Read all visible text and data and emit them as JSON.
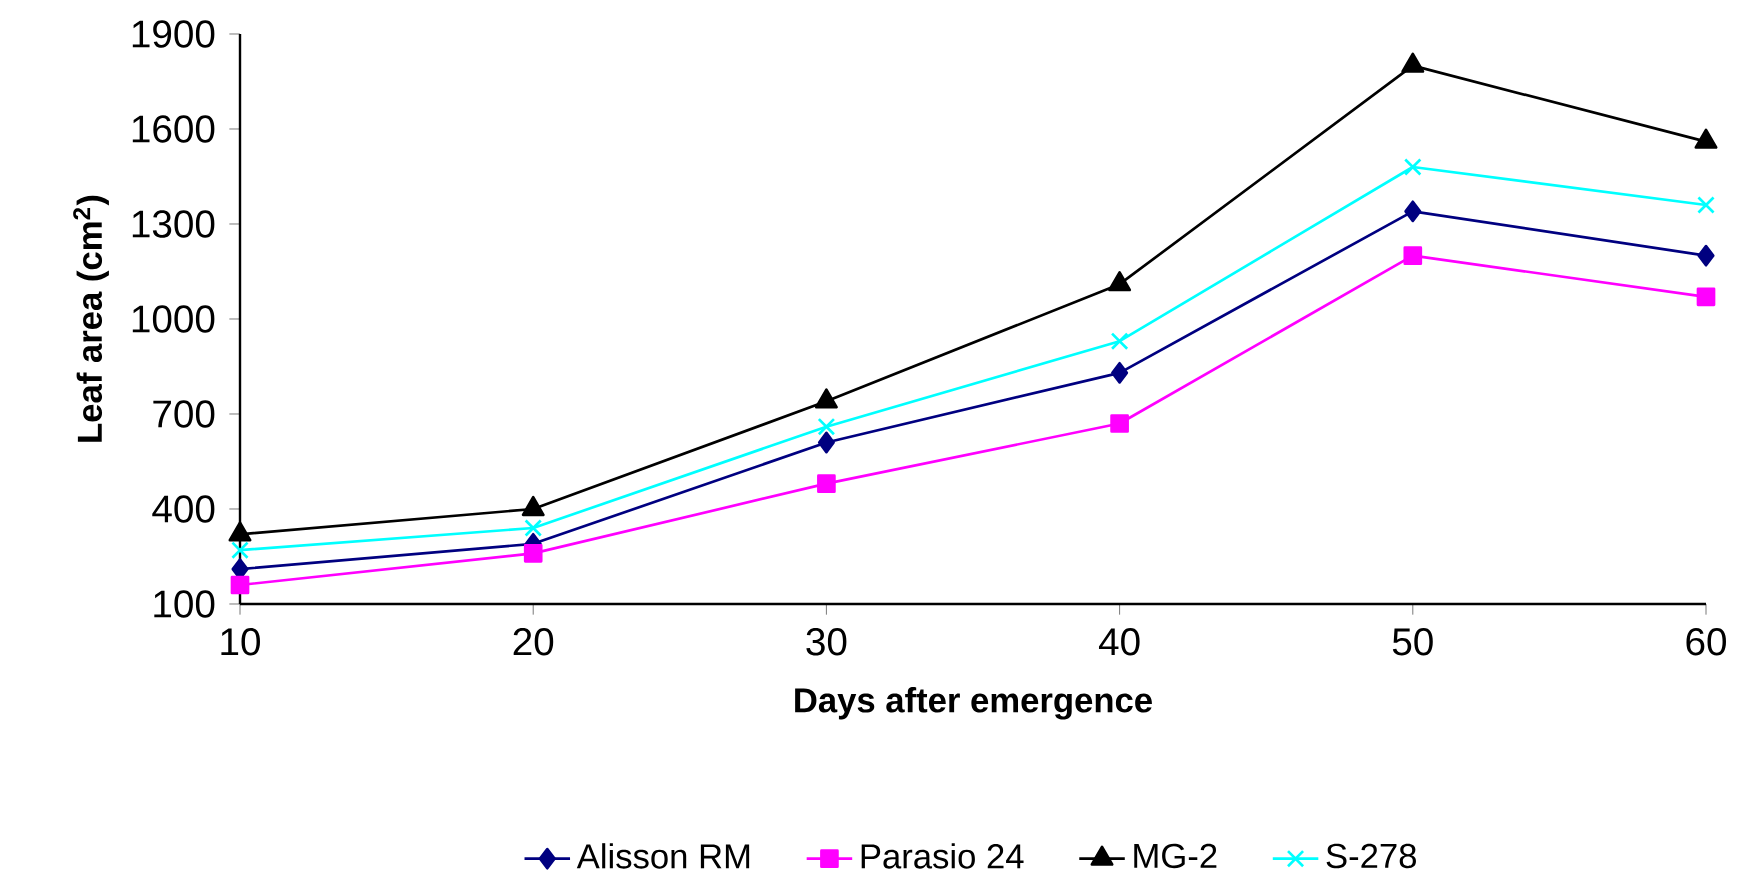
{
  "chart_data": {
    "type": "line",
    "xlabel": "Days after emergence",
    "ylabel": "Leaf area (cm$^{2}$)",
    "x": [
      10,
      20,
      30,
      40,
      50,
      60
    ],
    "xlim": [
      10,
      60
    ],
    "xticks": [
      10,
      20,
      30,
      40,
      50,
      60
    ],
    "ylim": [
      100,
      1900
    ],
    "yticks": [
      100,
      400,
      700,
      1000,
      1300,
      1600,
      1900
    ],
    "grid": false,
    "legend": "bottom",
    "line_style": "solid",
    "series": [
      {
        "name": "Alisson RM",
        "color": "#000080",
        "marker": "diamond",
        "values": [
          210,
          290,
          610,
          830,
          1340,
          1200
        ]
      },
      {
        "name": "Parasio 24",
        "color": "#ff00ff",
        "marker": "square",
        "values": [
          160,
          260,
          480,
          670,
          1200,
          1070
        ]
      },
      {
        "name": "MG-2",
        "color": "#000000",
        "marker": "triangle",
        "values": [
          320,
          400,
          740,
          1110,
          1800,
          1560
        ]
      },
      {
        "name": "S-278",
        "color": "#00ffff",
        "marker": "cross",
        "values": [
          270,
          340,
          660,
          930,
          1480,
          1360
        ]
      }
    ]
  }
}
